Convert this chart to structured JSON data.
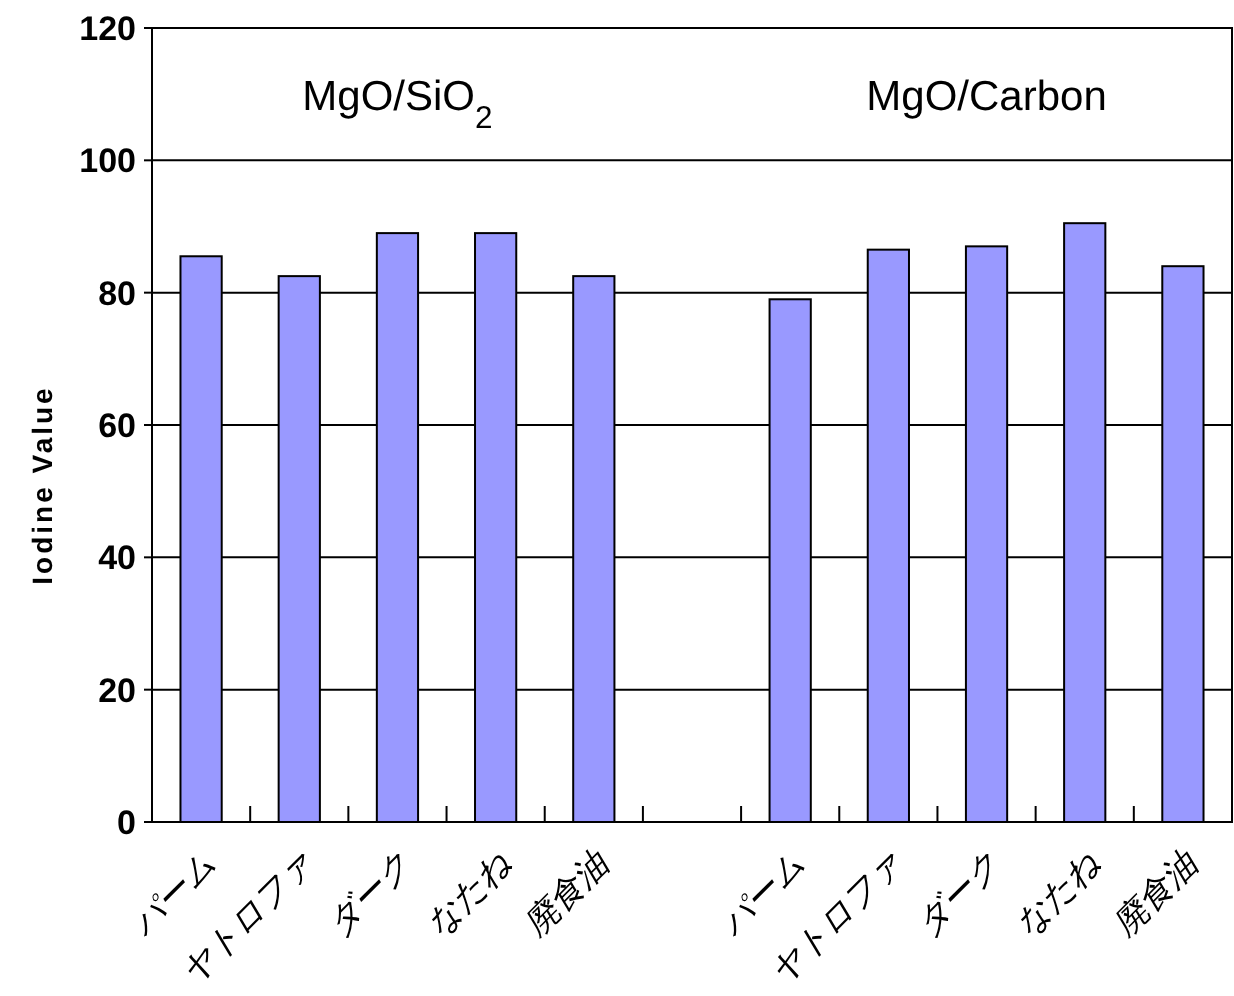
{
  "chart_data": {
    "type": "bar",
    "ylabel": "Iodine Value",
    "categories": [
      "パーム",
      "ヤトロファ",
      "ダーク",
      "なたね",
      "廃食油",
      null,
      "パーム",
      "ヤトロファ",
      "ダーク",
      "なたね",
      "廃食油"
    ],
    "values": [
      85.5,
      82.5,
      89,
      89,
      82.5,
      null,
      79,
      86.5,
      87,
      90.5,
      84
    ],
    "color": "#9999ff",
    "ylim": [
      0,
      120
    ],
    "yticks": [
      0,
      20,
      40,
      60,
      80,
      100,
      120
    ],
    "grid": "y",
    "annotations": [
      "MgO/SiO$_{2}$",
      "MgO/Carbon"
    ]
  }
}
